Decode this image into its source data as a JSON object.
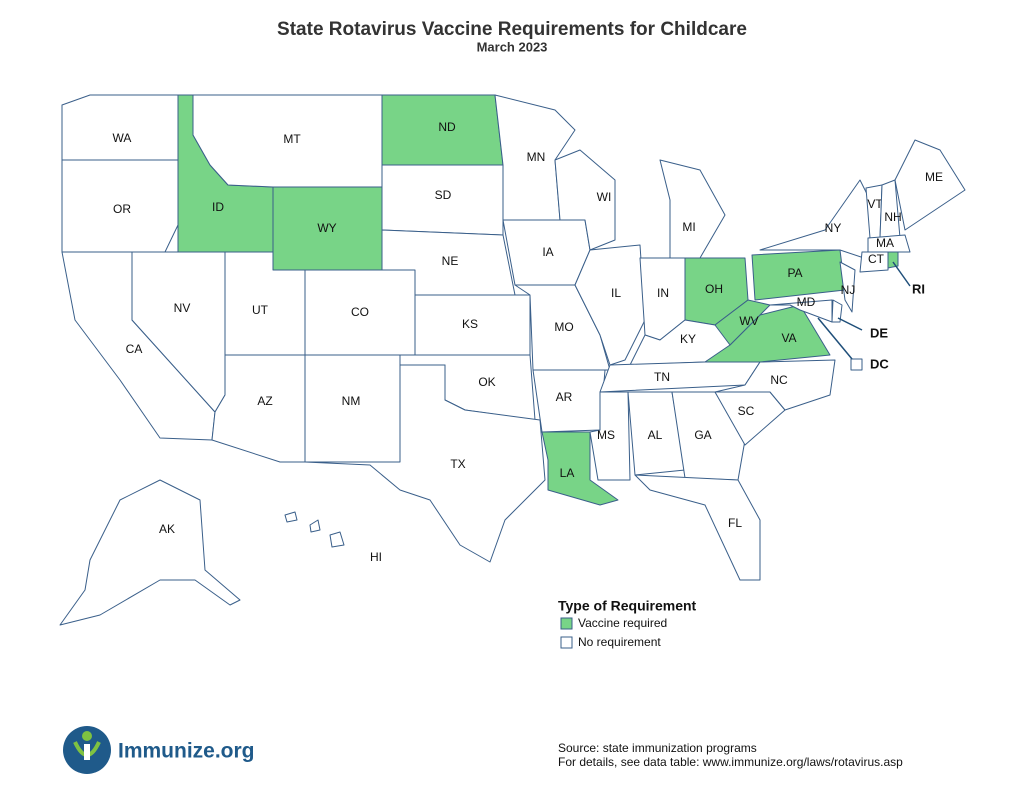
{
  "title": "State Rotavirus Vaccine Requirements for Childcare",
  "subtitle": "March 2023",
  "legend": {
    "title": "Type of Requirement",
    "items": [
      {
        "label": "Vaccine required",
        "color": "#78d487"
      },
      {
        "label": "No requirement",
        "color": "#ffffff"
      }
    ]
  },
  "states": [
    {
      "label": "WA",
      "required": false
    },
    {
      "label": "OR",
      "required": false
    },
    {
      "label": "CA",
      "required": false
    },
    {
      "label": "NV",
      "required": false
    },
    {
      "label": "ID",
      "required": true
    },
    {
      "label": "MT",
      "required": false
    },
    {
      "label": "WY",
      "required": true
    },
    {
      "label": "UT",
      "required": false
    },
    {
      "label": "CO",
      "required": false
    },
    {
      "label": "AZ",
      "required": false
    },
    {
      "label": "NM",
      "required": false
    },
    {
      "label": "ND",
      "required": true
    },
    {
      "label": "SD",
      "required": false
    },
    {
      "label": "NE",
      "required": false
    },
    {
      "label": "KS",
      "required": false
    },
    {
      "label": "OK",
      "required": false
    },
    {
      "label": "TX",
      "required": false
    },
    {
      "label": "MN",
      "required": false
    },
    {
      "label": "IA",
      "required": false
    },
    {
      "label": "MO",
      "required": false
    },
    {
      "label": "AR",
      "required": false
    },
    {
      "label": "LA",
      "required": true
    },
    {
      "label": "WI",
      "required": false
    },
    {
      "label": "IL",
      "required": false
    },
    {
      "label": "MI",
      "required": false
    },
    {
      "label": "IN",
      "required": false
    },
    {
      "label": "OH",
      "required": true
    },
    {
      "label": "KY",
      "required": false
    },
    {
      "label": "TN",
      "required": false
    },
    {
      "label": "MS",
      "required": false
    },
    {
      "label": "AL",
      "required": false
    },
    {
      "label": "GA",
      "required": false
    },
    {
      "label": "FL",
      "required": false
    },
    {
      "label": "SC",
      "required": false
    },
    {
      "label": "NC",
      "required": false
    },
    {
      "label": "VA",
      "required": true
    },
    {
      "label": "WV",
      "required": true
    },
    {
      "label": "PA",
      "required": true
    },
    {
      "label": "NY",
      "required": false
    },
    {
      "label": "VT",
      "required": false
    },
    {
      "label": "NH",
      "required": false
    },
    {
      "label": "ME",
      "required": false
    },
    {
      "label": "MA",
      "required": false
    },
    {
      "label": "CT",
      "required": false
    },
    {
      "label": "RI",
      "required": true
    },
    {
      "label": "NJ",
      "required": false
    },
    {
      "label": "DE",
      "required": false
    },
    {
      "label": "MD",
      "required": false
    },
    {
      "label": "DC",
      "required": false
    },
    {
      "label": "AK",
      "required": false
    },
    {
      "label": "HI",
      "required": false
    }
  ],
  "source": [
    "Source: state immunization programs",
    "For details, see data table: www.immunize.org/laws/rotavirus.asp"
  ],
  "logo": "Immunize.org"
}
